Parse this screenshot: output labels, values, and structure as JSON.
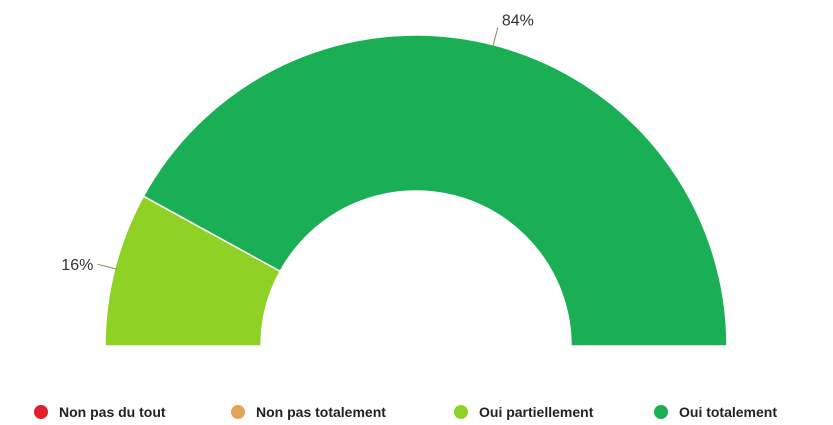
{
  "chart_data": {
    "type": "pie",
    "variant": "half-donut",
    "title": "",
    "legend_position": "bottom",
    "slices": [
      {
        "name": "Non pas du tout",
        "value": 0,
        "color": "#e0202a",
        "label": ""
      },
      {
        "name": "Non pas totalement",
        "value": 0,
        "color": "#e4a35a",
        "label": ""
      },
      {
        "name": "Oui partiellement",
        "value": 16,
        "color": "#8fd124",
        "label": "16%"
      },
      {
        "name": "Oui totalement",
        "value": 84,
        "color": "#1aaf54",
        "label": "84%"
      }
    ]
  }
}
